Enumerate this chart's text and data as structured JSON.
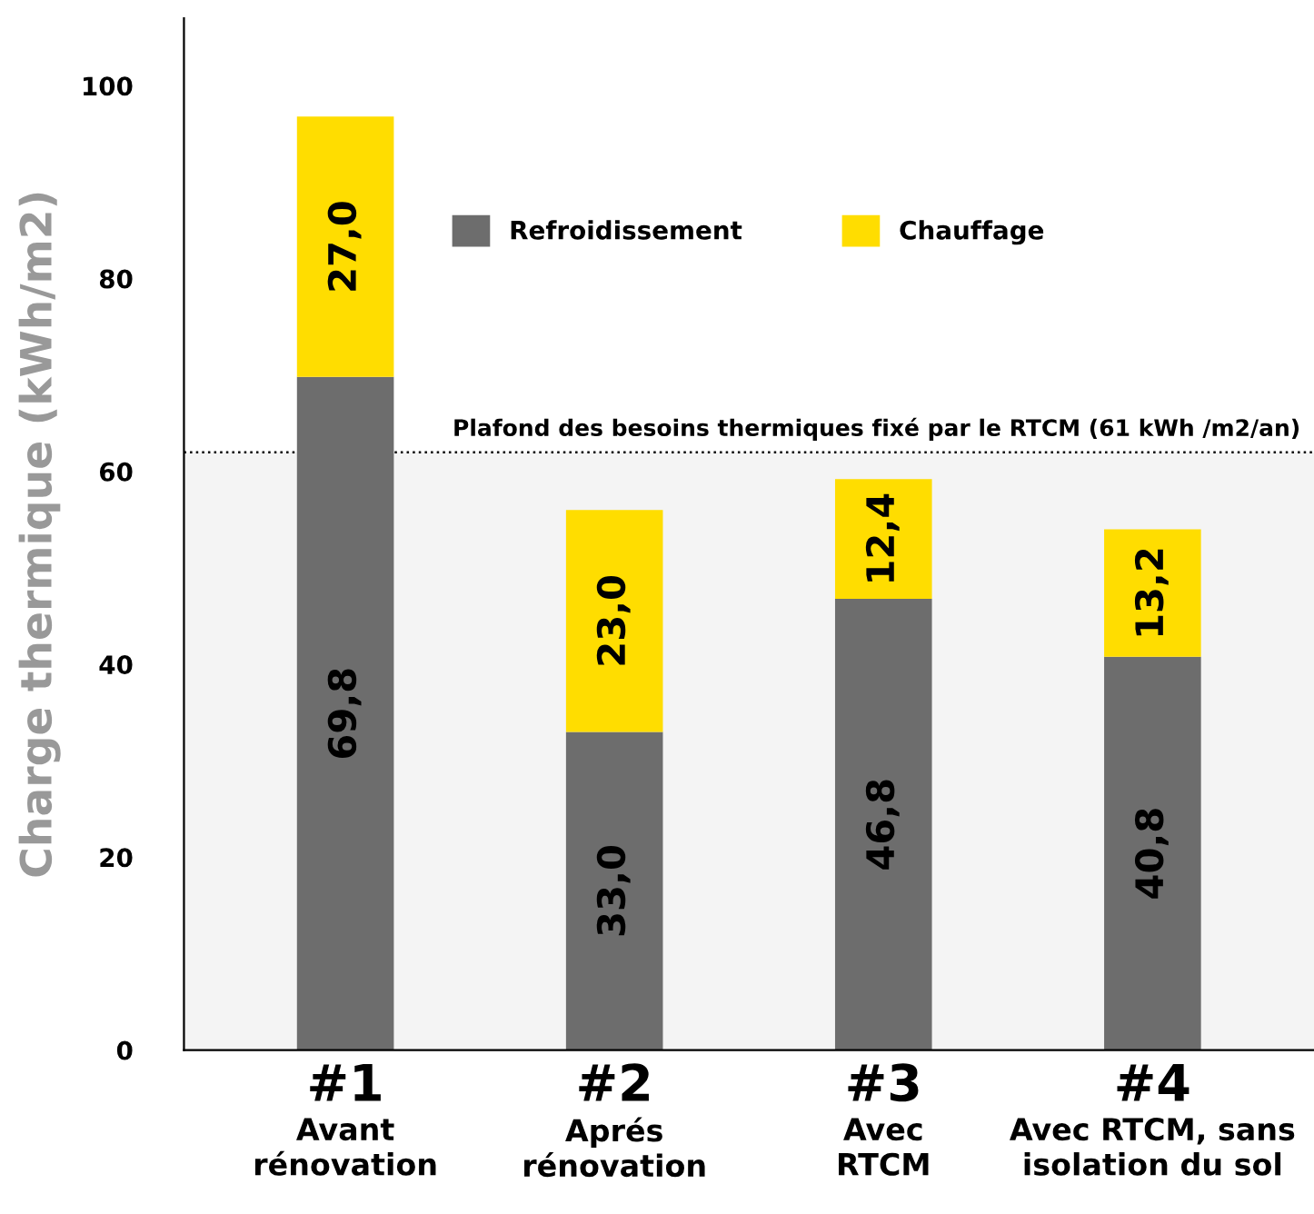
{
  "chart_data": {
    "type": "bar",
    "stacked": true,
    "ylabel": "Charge thermique (kWh/m2)",
    "categories": [
      "#1\nAvant\nrénovation",
      "#2\nAprés\nrénovation",
      "#3\nAvec\nRTCM",
      "#4\nAvec RTCM, sans\nisolation du sol"
    ],
    "series": [
      {
        "name": "Refroidissement",
        "color": "#6d6d6d",
        "values": [
          69.8,
          33.0,
          46.8,
          40.8
        ],
        "value_labels": [
          "69,8",
          "33,0",
          "46,8",
          "40,8"
        ]
      },
      {
        "name": "Chauffage",
        "color": "#ffdd00",
        "values": [
          27.0,
          23.0,
          12.4,
          13.2
        ],
        "value_labels": [
          "27,0",
          "23,0",
          "12,4",
          "13,2"
        ]
      }
    ],
    "ylim": [
      0,
      107
    ],
    "yticks": [
      0,
      20,
      40,
      60,
      80,
      100
    ],
    "grid": false,
    "legend": "top",
    "ref_lines": [
      {
        "axis": "y",
        "value": 62,
        "label": "Plafond des besoins thermiques fixé par le RTCM (61 kWh /m2/an)",
        "color": "#000000",
        "line_style": "dotted"
      }
    ],
    "bands": [
      {
        "axis": "y",
        "from": 0,
        "to": 62,
        "color": "#f4f4f4"
      }
    ]
  }
}
